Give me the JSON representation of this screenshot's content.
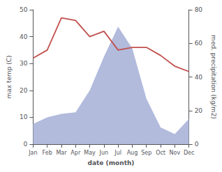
{
  "chart_data": {
    "type": "line",
    "xlabel": "date (month)",
    "ylabel": "max temp (C)",
    "y2label": "med. precipitation (kg/m2)",
    "categories": [
      "Jan",
      "Feb",
      "Mar",
      "Apr",
      "May",
      "Jun",
      "Jul",
      "Aug",
      "Sep",
      "Oct",
      "Nov",
      "Dec"
    ],
    "series": [
      {
        "type": "area",
        "axis": "y2",
        "color": "#aab4d8",
        "values": [
          12,
          16,
          18,
          19,
          32,
          52,
          70,
          57,
          27,
          10,
          6,
          15
        ]
      },
      {
        "type": "line",
        "axis": "y",
        "color": "#c0504d",
        "values": [
          32,
          35,
          47,
          46,
          40,
          42,
          35,
          36,
          36,
          33,
          29,
          27
        ]
      }
    ],
    "ylim": [
      0,
      50
    ],
    "yticks": [
      0,
      10,
      20,
      30,
      40,
      50
    ],
    "y2lim": [
      0,
      80
    ],
    "y2ticks": [
      0,
      20,
      40,
      60,
      80
    ],
    "grid": false
  }
}
